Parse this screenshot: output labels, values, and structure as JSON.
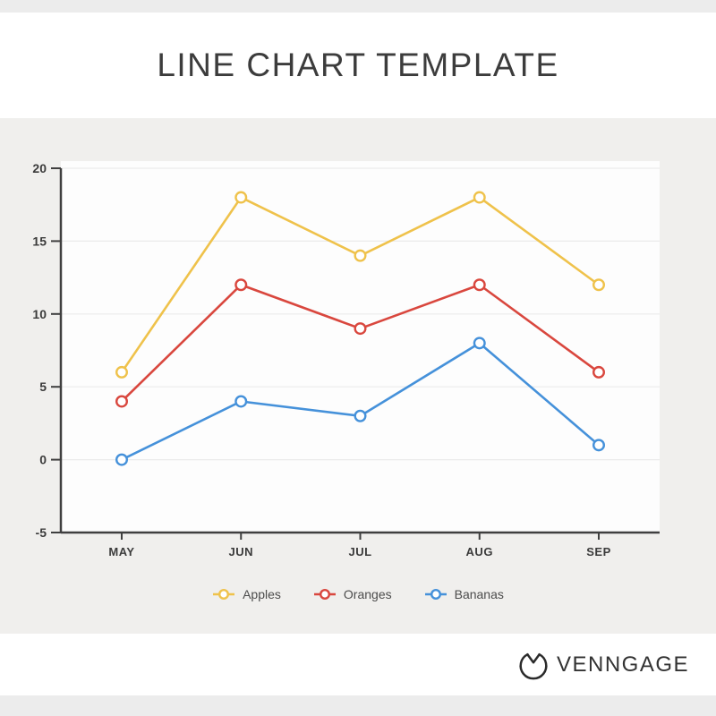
{
  "header": {
    "title": "LINE CHART TEMPLATE"
  },
  "chart_data": {
    "type": "line",
    "title": "",
    "categories": [
      "MAY",
      "JUN",
      "JUL",
      "AUG",
      "SEP"
    ],
    "series": [
      {
        "name": "Apples",
        "color": "#EFC24B",
        "values": [
          6,
          18,
          14,
          18,
          12
        ]
      },
      {
        "name": "Oranges",
        "color": "#D9473E",
        "values": [
          4,
          12,
          9,
          12,
          6
        ]
      },
      {
        "name": "Bananas",
        "color": "#4591DA",
        "values": [
          0,
          4,
          3,
          8,
          1
        ]
      }
    ],
    "ylim": [
      -5,
      20
    ],
    "yticks": [
      -5,
      0,
      5,
      10,
      15,
      20
    ],
    "grid": true,
    "legend_position": "bottom",
    "marker": "open-circle",
    "plot_bg": "#fdfdfd",
    "grid_color": "#ebebeb",
    "axis_color": "#3f3f3f",
    "tick_label_color": "#3b3b3b"
  },
  "footer": {
    "brand": "VENNGAGE"
  }
}
